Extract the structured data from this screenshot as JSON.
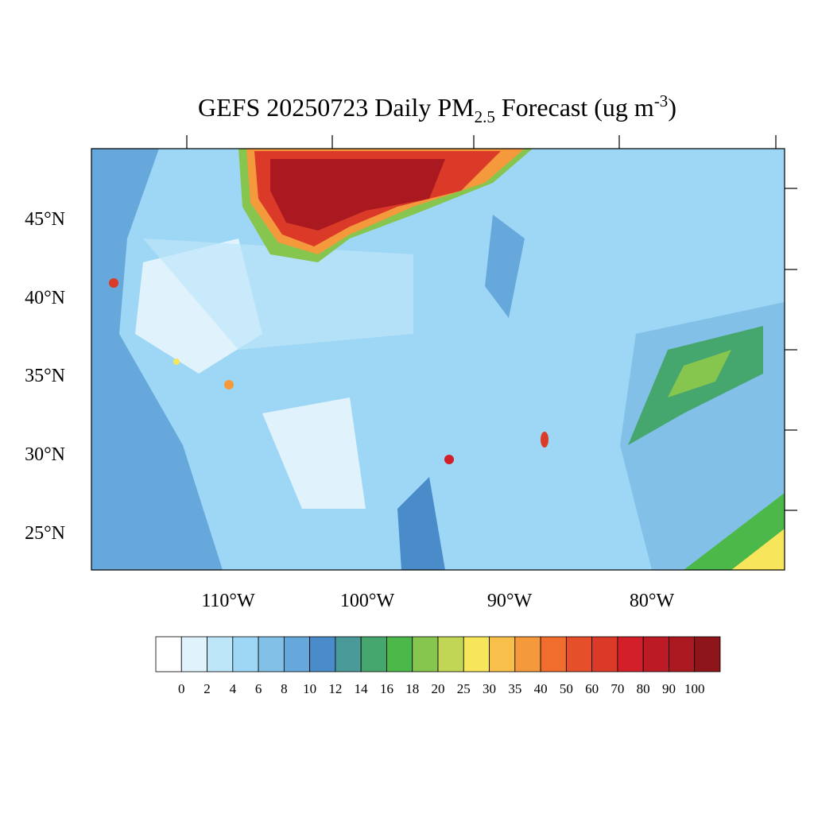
{
  "map": {
    "title": {
      "main": "GEFS 20250723 Daily PM",
      "subscript": "2.5",
      "middle": " Forecast (ug m",
      "superscript": "-3",
      "end": ")"
    },
    "lat_labels": [
      "25°N",
      "30°N",
      "35°N",
      "40°N",
      "45°N"
    ],
    "lon_labels": [
      "110°W",
      "100°W",
      "90°W",
      "80°W"
    ],
    "colorbar": {
      "levels": [
        0,
        2,
        4,
        6,
        8,
        10,
        12,
        14,
        16,
        18,
        20,
        25,
        30,
        35,
        40,
        50,
        60,
        70,
        80,
        90,
        100
      ],
      "colors": [
        "#ffffff",
        "#e0f3fc",
        "#bde6f9",
        "#9dd7f5",
        "#82c0e8",
        "#66a8dc",
        "#4a8cca",
        "#4b9a9a",
        "#45a66e",
        "#4cb84a",
        "#86c54e",
        "#c1d655",
        "#f7e55c",
        "#f8c04a",
        "#f59a3c",
        "#f06d2e",
        "#e5502b",
        "#dc3a28",
        "#d21f2a",
        "#bc1a25",
        "#a9191f",
        "#8e1519"
      ]
    }
  }
}
